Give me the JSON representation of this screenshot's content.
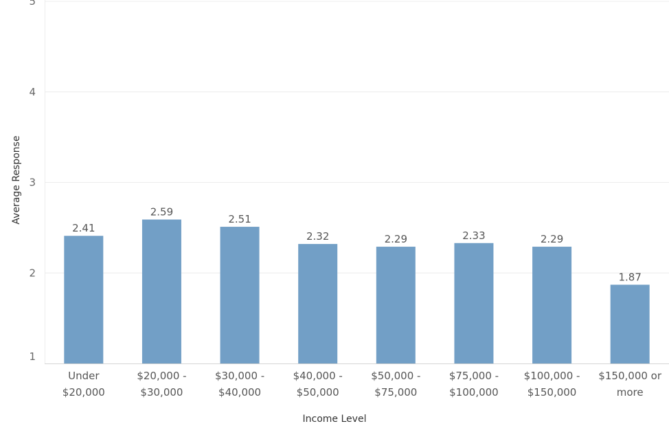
{
  "chart_data": {
    "type": "bar",
    "title": "",
    "xlabel": "Income Level",
    "ylabel": "Average Response",
    "categories": [
      [
        "Under",
        "$20,000"
      ],
      [
        "$20,000 -",
        "$30,000"
      ],
      [
        "$30,000 -",
        "$40,000"
      ],
      [
        "$40,000 -",
        "$50,000"
      ],
      [
        "$50,000 -",
        "$75,000"
      ],
      [
        "$75,000 -",
        "$100,000"
      ],
      [
        "$100,000 -",
        "$150,000"
      ],
      [
        "$150,000 or",
        "more"
      ]
    ],
    "values": [
      2.41,
      2.59,
      2.51,
      2.32,
      2.29,
      2.33,
      2.29,
      1.87
    ],
    "data_labels": [
      "2.41",
      "2.59",
      "2.51",
      "2.32",
      "2.29",
      "2.33",
      "2.29",
      "1.87"
    ],
    "ylim": [
      1,
      5
    ],
    "yticks": [
      "1",
      "2",
      "3",
      "4",
      "5"
    ],
    "grid": true,
    "legend": "none",
    "bar_color": "#729fc6",
    "grid_color": "#ececec",
    "axis_color": "#d4d4d4"
  }
}
